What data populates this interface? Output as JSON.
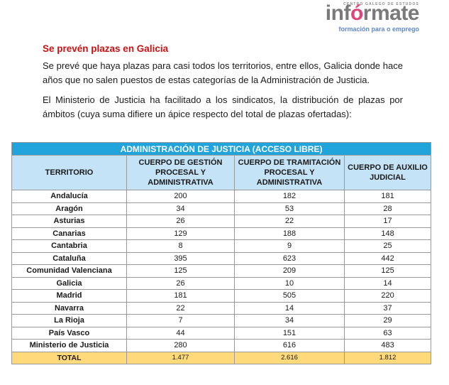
{
  "logo": {
    "tagline": "CENTRO GALEGO DE ESTUDOS",
    "word_part1": "inf",
    "word_accent": "ó",
    "word_part2": "rmate",
    "subtitle": "formación para o emprego",
    "colors": {
      "word": "#7a7a7a",
      "accent": "#e0447a",
      "subtitle": "#5f88c8"
    }
  },
  "article": {
    "heading": "Se prevén plazas en Galicia",
    "paragraph1": "Se prevé que haya plazas para casi todos los territorios, entre ellos, Galicia donde hace años que no salen puestos de estas categorías de la Administración de Justicia.",
    "paragraph2": "El Ministerio de Justicia ha facilitado a los sindicatos, la distribución de plazas por ámbitos (cuya suma difiere un ápice respecto del total de plazas ofertadas):"
  },
  "table": {
    "title": "ADMINISTRACIÓN DE JUSTICIA (ACCESO LIBRE)",
    "headers": [
      "TERRITORIO",
      "CUERPO DE GESTIÓN PROCESAL Y ADMINISTRATIVA",
      "CUERPO DE TRAMITACIÓN PROCESAL Y ADMINISTRATIVA",
      "CUERPO DE AUXILIO JUDICIAL"
    ],
    "rows": [
      [
        "Andalucía",
        "200",
        "182",
        "181"
      ],
      [
        "Aragón",
        "34",
        "53",
        "28"
      ],
      [
        "Asturias",
        "26",
        "22",
        "17"
      ],
      [
        "Canarias",
        "129",
        "188",
        "148"
      ],
      [
        "Cantabria",
        "8",
        "9",
        "25"
      ],
      [
        "Cataluña",
        "395",
        "623",
        "442"
      ],
      [
        "Comunidad Valenciana",
        "125",
        "209",
        "125"
      ],
      [
        "Galicia",
        "26",
        "10",
        "14"
      ],
      [
        "Madrid",
        "181",
        "505",
        "220"
      ],
      [
        "Navarra",
        "22",
        "14",
        "37"
      ],
      [
        "La Rioja",
        "7",
        "34",
        "29"
      ],
      [
        "País Vasco",
        "44",
        "151",
        "63"
      ],
      [
        "Ministerio de Justicia",
        "280",
        "616",
        "483"
      ]
    ],
    "total": [
      "TOTAL",
      "1.477",
      "2.616",
      "1.812"
    ],
    "colors": {
      "title_bg": "#21a4dc",
      "header_bg": "#c5e3f6",
      "total_bg": "#ffd97a",
      "heading_red": "#cc1111"
    }
  }
}
